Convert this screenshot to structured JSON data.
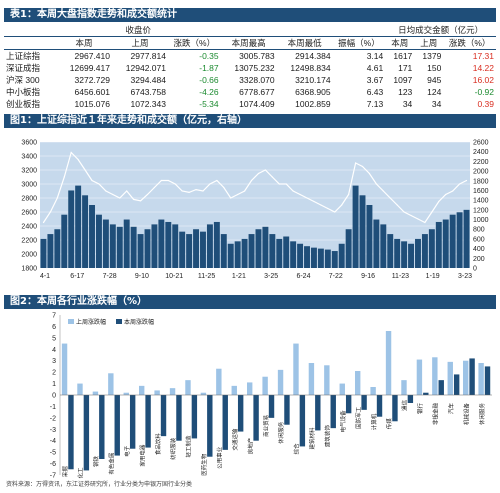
{
  "table": {
    "title": "表1：本周大盘指数走势和成交额统计",
    "group_headers": [
      "收盘价",
      "日均成交金额（亿元）"
    ],
    "columns": [
      "本周",
      "上周",
      "涨跌（%）",
      "本周最高",
      "本周最低",
      "振幅（%）",
      "本周",
      "上周",
      "涨跌（%）"
    ],
    "rows": [
      {
        "name": "上证综指",
        "close": "2967.410",
        "prev": "2977.814",
        "chg": "-0.35",
        "high": "3005.783",
        "low": "2914.384",
        "amp": "3.14",
        "vol": "1617",
        "vol_prev": "1379",
        "vol_chg": "17.31"
      },
      {
        "name": "深证成指",
        "close": "12699.417",
        "prev": "12942.071",
        "chg": "-1.87",
        "high": "13075.232",
        "low": "12498.834",
        "amp": "4.61",
        "vol": "171",
        "vol_prev": "150",
        "vol_chg": "14.22"
      },
      {
        "name": "沪深 300",
        "close": "3272.729",
        "prev": "3294.484",
        "chg": "-0.66",
        "high": "3328.070",
        "low": "3210.174",
        "amp": "3.67",
        "vol": "1097",
        "vol_prev": "945",
        "vol_chg": "16.02"
      },
      {
        "name": "中小板指",
        "close": "6456.601",
        "prev": "6743.758",
        "chg": "-4.26",
        "high": "6778.677",
        "low": "6368.905",
        "amp": "6.43",
        "vol": "123",
        "vol_prev": "124",
        "vol_chg": "-0.92"
      },
      {
        "name": "创业板指",
        "close": "1015.076",
        "prev": "1072.343",
        "chg": "-5.34",
        "high": "1074.409",
        "low": "1002.859",
        "amp": "7.13",
        "vol": "34",
        "vol_prev": "34",
        "vol_chg": "0.39"
      }
    ]
  },
  "figure1": {
    "title": "图1：上证综指近１年来走势和成交额（亿元，右轴）"
  },
  "figure2": {
    "title": "图2：本周各行业涨跌幅（%）",
    "source": "资料来源：万得资讯，东江证券研究所，行业分类为申银万国行业分类"
  },
  "colors": {
    "header_bg": "#1f4e79",
    "plot_bg": "#c6d9ec",
    "bar_dark": "#1f4e79",
    "bar_light": "#9dc3e6",
    "line": "#ffffff",
    "up": "#d92d20",
    "down": "#1b8a2f"
  },
  "chart_data": [
    {
      "type": "line",
      "title": "上证综指近１年来走势和成交额（亿元，右轴）",
      "x_ticks": [
        "4-1",
        "6-17",
        "7-28",
        "9-10",
        "10-21",
        "11-25",
        "1-21",
        "3-25",
        "6-24",
        "7-22",
        "9-16",
        "11-23",
        "1-19",
        "3-23"
      ],
      "y_left_ticks": [
        "1800",
        "2000",
        "2200",
        "2400",
        "2600",
        "2800",
        "3000",
        "3200",
        "3400",
        "3600"
      ],
      "y_right_ticks": [
        "0",
        "200",
        "400",
        "600",
        "800",
        "1000",
        "1200",
        "1400",
        "1600",
        "1800",
        "2000",
        "2200",
        "2400",
        "2600"
      ],
      "ylim_left": [
        1800,
        3600
      ],
      "ylim_right": [
        0,
        2600
      ],
      "series": [
        {
          "kind": "line",
          "axis": "left",
          "values": [
            2450,
            2600,
            2800,
            3100,
            3450,
            3350,
            3200,
            3050,
            3000,
            2900,
            2850,
            2800,
            2900,
            2780,
            2760,
            2850,
            2950,
            3050,
            3050,
            3000,
            2900,
            2880,
            2920,
            2900,
            3000,
            3050,
            2950,
            2800,
            2850,
            2900,
            3050,
            3150,
            3200,
            3100,
            3000,
            3000,
            2900,
            2850,
            2800,
            2750,
            2700,
            2650,
            2600,
            2700,
            2850,
            3300,
            3250,
            3150,
            3000,
            2900,
            2800,
            2700,
            2600,
            2550,
            2500,
            2450,
            2600,
            2750,
            2850,
            2900,
            3000,
            3050
          ]
        },
        {
          "kind": "bar",
          "axis": "right",
          "values": [
            600,
            700,
            800,
            1100,
            1600,
            1700,
            1500,
            1300,
            1100,
            1000,
            900,
            850,
            1000,
            850,
            700,
            800,
            900,
            1000,
            950,
            900,
            750,
            700,
            800,
            750,
            900,
            950,
            700,
            500,
            550,
            600,
            700,
            800,
            850,
            700,
            600,
            650,
            550,
            500,
            450,
            420,
            400,
            380,
            350,
            500,
            800,
            1700,
            1500,
            1300,
            1000,
            900,
            700,
            600,
            550,
            500,
            600,
            700,
            800,
            950,
            1000,
            1100,
            1150,
            1200
          ]
        }
      ]
    },
    {
      "type": "bar",
      "title": "本周各行业涨跌幅（%）",
      "legend": [
        "上周涨跌幅",
        "本周涨跌幅"
      ],
      "ylim": [
        -7,
        7
      ],
      "y_ticks": [
        "-7",
        "-6",
        "-5",
        "-4",
        "-3",
        "-2",
        "-1",
        "0",
        "1",
        "2",
        "3",
        "4",
        "5",
        "6",
        "7"
      ],
      "categories": [
        "采掘",
        "化工",
        "钢铁",
        "有色金属",
        "电子",
        "家用电器",
        "食品饮料",
        "纺织服装",
        "轻工制造",
        "医药生物",
        "公用事业",
        "交通运输",
        "房地产",
        "商业贸易",
        "休闲服务",
        "综合",
        "建筑材料",
        "建筑装饰",
        "电气设备",
        "国防军工",
        "计算机",
        "传媒",
        "通信",
        "银行",
        "非银金融",
        "汽车",
        "机械设备",
        "休闲服务"
      ],
      "series": [
        {
          "name": "上周涨跌幅",
          "values": [
            4.5,
            1.0,
            0.3,
            1.9,
            0.2,
            0.8,
            0.4,
            0.6,
            1.3,
            0.2,
            2.3,
            0.8,
            1.1,
            1.6,
            2.2,
            4.5,
            2.8,
            2.6,
            1.0,
            2.1,
            0.7,
            5.6,
            1.3,
            3.1,
            3.3,
            2.9,
            3.0,
            2.8
          ]
        },
        {
          "name": "本周涨跌幅",
          "values": [
            -6.5,
            -6.6,
            -5.6,
            -5.3,
            -4.7,
            -4.6,
            -3.6,
            -4.0,
            -3.8,
            -5.4,
            -4.8,
            -3.2,
            -4.0,
            -2.0,
            -2.6,
            -4.5,
            -3.1,
            -2.9,
            -1.6,
            -1.3,
            -1.9,
            -2.3,
            -0.7,
            0.2,
            1.3,
            1.8,
            3.2,
            2.5
          ]
        }
      ]
    }
  ]
}
